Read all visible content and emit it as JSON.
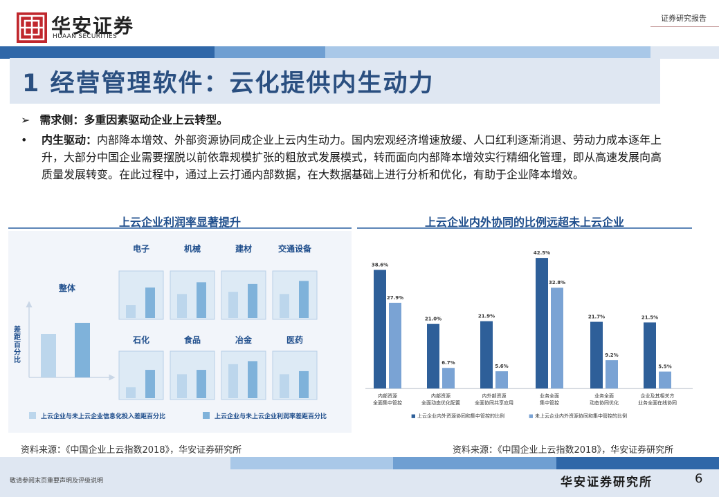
{
  "header": {
    "brand_cn": "华安证券",
    "brand_en": "HUAAN SECURITIES",
    "doc_type": "证券研究报告"
  },
  "title": "1 经营管理软件：云化提供内生动力",
  "bullets": {
    "b1_mark": "➢",
    "b1_text": "需求侧：多重因素驱动企业上云转型。",
    "b2_mark": "•",
    "b2_label": "内生驱动：",
    "b2_text": "内部降本增效、外部资源协同成企业上云内生动力。国内宏观经济增速放缓、人口红利逐渐消退、劳动力成本逐年上升，大部分中国企业需要摆脱以前依靠规模扩张的粗放式发展模式，转而面向内部降本增效实行精细化管理，即从高速发展向高质量发展转变。在此过程中，通过上云打通内部数据，在大数据基础上进行分析和优化，有助于企业降本增效。"
  },
  "left_panel": {
    "title": "上云企业利润率显著提升",
    "ylabel": "差距百分比",
    "overall_label": "整体",
    "industries_top": [
      "电子",
      "机械",
      "建材",
      "交通设备"
    ],
    "industries_bottom": [
      "石化",
      "食品",
      "冶金",
      "医药"
    ],
    "legend": [
      "上云企业与未上云企业信息化投入差距百分比",
      "上云企业与未上云企业利润率差距百分比"
    ],
    "colors": {
      "light": "#bcd6ec",
      "dark": "#7fb2da",
      "box_bg": "#ddeaf5",
      "box_border": "#b8cfe6"
    },
    "source": "资料来源：《中国企业上云指数2018》，华安证券研究所"
  },
  "right_panel": {
    "title": "上云企业内外协同的比例远超未上云企业",
    "source": "资料来源：《中国企业上云指数2018》，华安证券研究所",
    "colors": {
      "series1": "#2e5f99",
      "series2": "#7aa3d4"
    }
  },
  "chart_data": {
    "type": "bar",
    "categories": [
      "内部资源全面集中管控",
      "内部资源全面动态优化配置",
      "内外部资源全面协同共享应用",
      "业务全面集中管控",
      "业务全面动态协同优化",
      "企业及其相关方业务全面在线协同"
    ],
    "category_lines": [
      [
        "内部资源",
        "全面集中管控"
      ],
      [
        "内部资源",
        "全面动态优化配置"
      ],
      [
        "内外部资源",
        "全面协同共享应用"
      ],
      [
        "业务全面",
        "集中管控"
      ],
      [
        "业务全面",
        "动态协同优化"
      ],
      [
        "企业及其相关方",
        "业务全面在线协同"
      ]
    ],
    "series": [
      {
        "name": "上云企业内外资源协同和集中管控的比例",
        "values": [
          38.6,
          21.0,
          21.9,
          42.5,
          21.7,
          21.5
        ],
        "labels": [
          "38.6%",
          "21.0%",
          "21.9%",
          "42.5%",
          "21.7%",
          "21.5%"
        ]
      },
      {
        "name": "未上云企业内外资源协同和集中管控的比例",
        "values": [
          27.9,
          6.7,
          5.6,
          32.8,
          9.2,
          5.5
        ],
        "labels": [
          "27.9%",
          "6.7%",
          "5.6%",
          "32.8%",
          "9.2%",
          "5.5%"
        ]
      }
    ],
    "legend_prefix": "■",
    "ylim": [
      0,
      45
    ]
  },
  "footer": {
    "disclaimer": "敬请参阅末页重要声明及评级说明",
    "brand": "华安证券研究所",
    "page": "6"
  }
}
